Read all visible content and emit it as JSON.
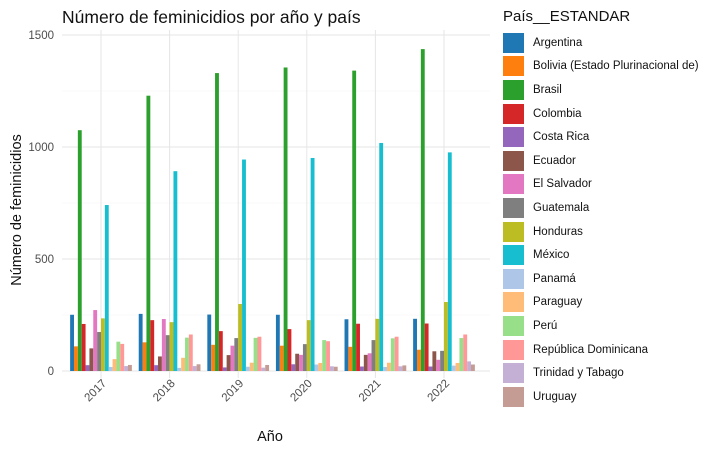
{
  "chart_data": {
    "type": "bar",
    "title": "Número de feminicidios por año y país",
    "xlabel": "Año",
    "ylabel": "Número de feminicidios",
    "ylim": [
      0,
      1500
    ],
    "yticks": [
      "0",
      "500",
      "1000",
      "1500"
    ],
    "grid": true,
    "legend_position": "right",
    "legend_title": "País__ESTANDAR",
    "categories": [
      "2017",
      "2018",
      "2019",
      "2020",
      "2021",
      "2022"
    ],
    "series": [
      {
        "name": "Argentina",
        "color": "#1f77b4",
        "values": [
          251,
          255,
          252,
          251,
          231,
          233
        ]
      },
      {
        "name": "Bolivia (Estado Plurinacional de)",
        "color": "#ff7f0e",
        "values": [
          110,
          128,
          117,
          113,
          108,
          95
        ]
      },
      {
        "name": "Brasil",
        "color": "#2ca02c",
        "values": [
          1075,
          1229,
          1330,
          1355,
          1341,
          1437
        ]
      },
      {
        "name": "Colombia",
        "color": "#d62728",
        "values": [
          210,
          227,
          178,
          187,
          211,
          212
        ]
      },
      {
        "name": "Costa Rica",
        "color": "#9467bd",
        "values": [
          26,
          26,
          16,
          30,
          20,
          20
        ]
      },
      {
        "name": "Ecuador",
        "color": "#8c564b",
        "values": [
          101,
          65,
          71,
          77,
          72,
          88
        ]
      },
      {
        "name": "El Salvador",
        "color": "#e377c2",
        "values": [
          272,
          232,
          113,
          72,
          79,
          50
        ]
      },
      {
        "name": "Guatemala",
        "color": "#7f7f7f",
        "values": [
          174,
          160,
          147,
          120,
          138,
          90
        ]
      },
      {
        "name": "Honduras",
        "color": "#bcbd22",
        "values": [
          235,
          218,
          299,
          227,
          233,
          308
        ]
      },
      {
        "name": "México",
        "color": "#17becf",
        "values": [
          741,
          892,
          944,
          951,
          1018,
          976
        ]
      },
      {
        "name": "Panamá",
        "color": "#aec7e8",
        "values": [
          18,
          14,
          19,
          29,
          18,
          24
        ]
      },
      {
        "name": "Paraguay",
        "color": "#ffbb78",
        "values": [
          53,
          59,
          37,
          36,
          37,
          36
        ]
      },
      {
        "name": "Perú",
        "color": "#98df8a",
        "values": [
          131,
          149,
          148,
          138,
          146,
          147
        ]
      },
      {
        "name": "República Dominicana",
        "color": "#ff9896",
        "values": [
          121,
          163,
          153,
          133,
          153,
          163
        ]
      },
      {
        "name": "Trinidad y Tabago",
        "color": "#c5b0d5",
        "values": [
          22,
          22,
          15,
          21,
          21,
          43
        ]
      },
      {
        "name": "Uruguay",
        "color": "#c49c94",
        "values": [
          27,
          30,
          27,
          19,
          25,
          29
        ]
      }
    ]
  }
}
